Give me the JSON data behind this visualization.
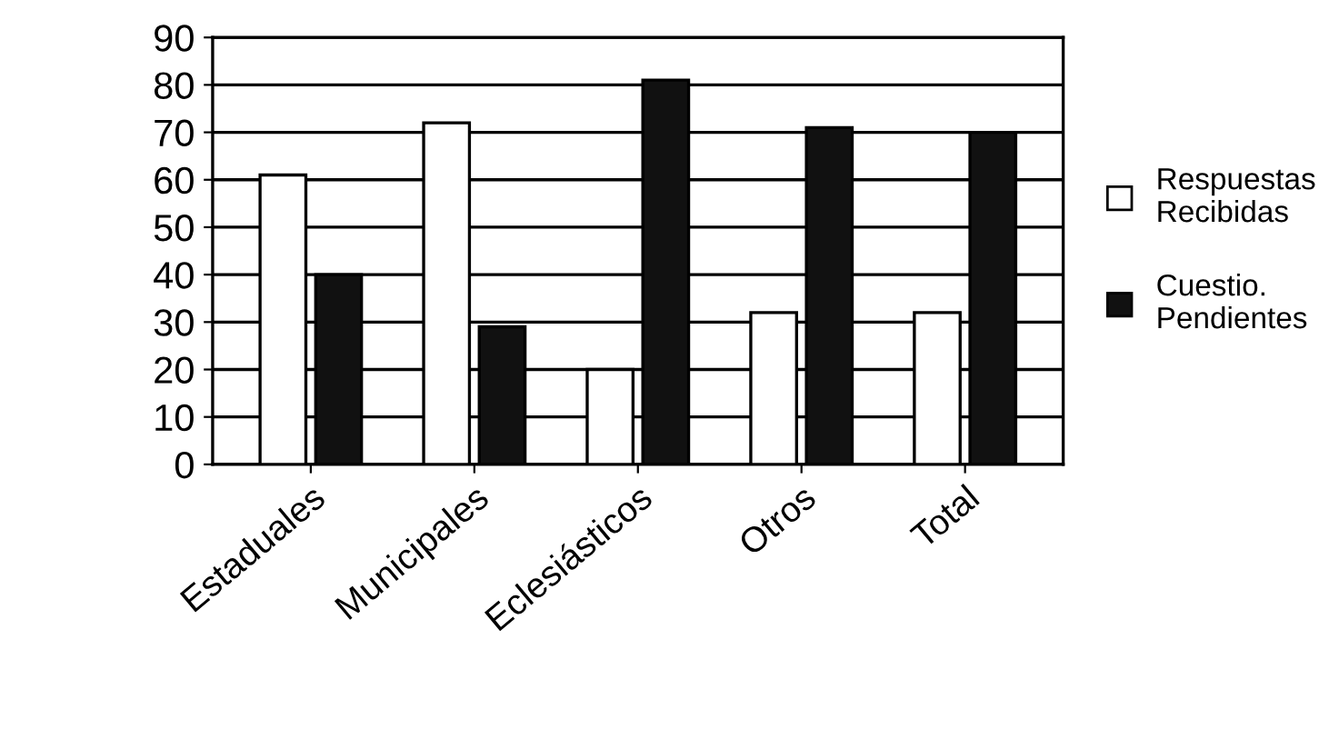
{
  "chart_data": {
    "type": "bar",
    "categories": [
      "Estaduales",
      "Municipales",
      "Eclesiásticos",
      "Otros",
      "Total"
    ],
    "series": [
      {
        "name": "Respuestas\nRecibidas",
        "color": "#ffffff",
        "values": [
          61,
          72,
          20,
          32,
          32
        ]
      },
      {
        "name": "Cuestio.\nPendientes",
        "color": "#111111",
        "values": [
          40,
          29,
          81,
          71,
          70
        ]
      }
    ],
    "ylim": [
      0,
      90
    ],
    "yticks": [
      0,
      10,
      20,
      30,
      40,
      50,
      60,
      70,
      80,
      90
    ],
    "grid": "y",
    "legend": "right"
  }
}
